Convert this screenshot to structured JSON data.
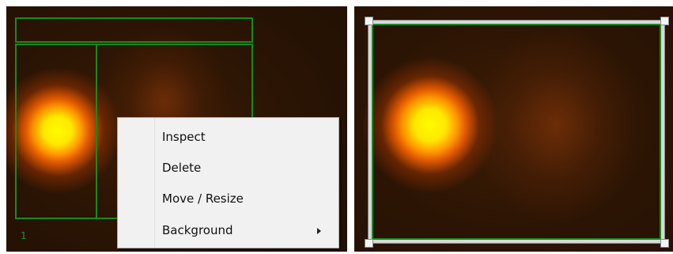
{
  "left_panel": {
    "roi_label": "1"
  },
  "context_menu": {
    "items": [
      {
        "label": "Inspect"
      },
      {
        "label": "Delete"
      },
      {
        "label": "Move / Resize"
      },
      {
        "label": "Background",
        "has_submenu": true
      }
    ]
  },
  "colors": {
    "roi_border": "#1a8a1a",
    "menu_background": "#f1f1f1",
    "frame_handle": "#f4f4f4"
  }
}
